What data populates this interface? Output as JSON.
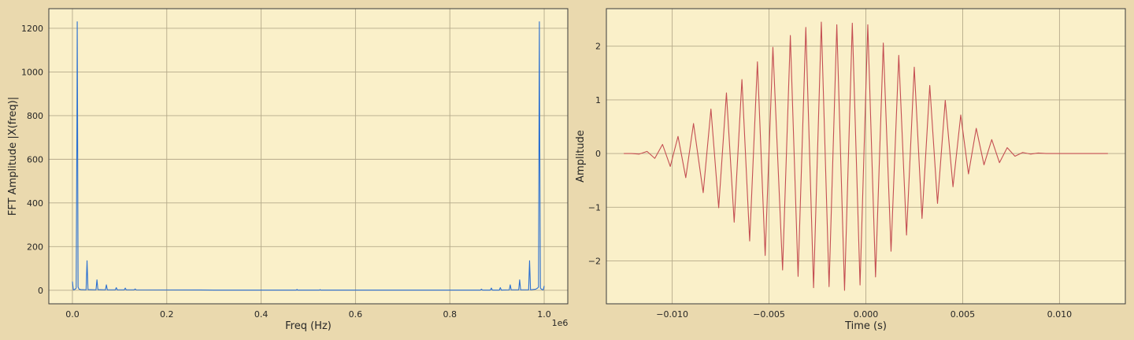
{
  "background_color": "#ead9ae",
  "plot_background_color": "#faf0c9",
  "grid_color": "#b5aa8a",
  "chart_data": [
    {
      "type": "line",
      "xlabel": "Freq (Hz)",
      "ylabel": "FFT Amplitude |X(freq)|",
      "x_offset_label": "1e6",
      "xlim": [
        -0.05,
        1.05
      ],
      "ylim": [
        -62,
        1290
      ],
      "xticks": [
        0.0,
        0.2,
        0.4,
        0.6,
        0.8,
        1.0
      ],
      "xtick_labels": [
        "0.0",
        "0.2",
        "0.4",
        "0.6",
        "0.8",
        "1.0"
      ],
      "yticks": [
        0,
        200,
        400,
        600,
        800,
        1000,
        1200
      ],
      "ytick_labels": [
        "0",
        "200",
        "400",
        "600",
        "800",
        "1000",
        "1200"
      ],
      "grid": true,
      "series": [
        {
          "color": "#2a6fd1",
          "x": [
            0.0,
            0.002,
            0.004,
            0.006,
            0.008,
            0.0098,
            0.0102,
            0.0108,
            0.012,
            0.014,
            0.018,
            0.029,
            0.031,
            0.033,
            0.05,
            0.052,
            0.054,
            0.07,
            0.072,
            0.074,
            0.091,
            0.093,
            0.095,
            0.11,
            0.112,
            0.114,
            0.131,
            0.133,
            0.135,
            0.3,
            0.475,
            0.476,
            0.477,
            0.524,
            0.525,
            0.526,
            0.7,
            0.865,
            0.867,
            0.869,
            0.886,
            0.888,
            0.89,
            0.905,
            0.907,
            0.909,
            0.926,
            0.928,
            0.93,
            0.946,
            0.948,
            0.95,
            0.967,
            0.969,
            0.971,
            0.982,
            0.986,
            0.988,
            0.9892,
            0.9898,
            0.9902,
            0.992,
            0.994,
            0.996,
            0.998,
            1.0
          ],
          "y": [
            40,
            2,
            3,
            5,
            10,
            880,
            1230,
            900,
            15,
            5,
            3,
            2,
            135,
            3,
            2,
            48,
            3,
            2,
            25,
            2,
            2,
            12,
            2,
            2,
            10,
            2,
            2,
            6,
            2,
            1,
            1,
            4,
            1,
            1,
            3,
            1,
            1,
            1,
            5,
            1,
            1,
            10,
            1,
            1,
            12,
            1,
            2,
            25,
            2,
            2,
            48,
            2,
            2,
            135,
            2,
            5,
            10,
            15,
            900,
            1230,
            880,
            10,
            5,
            3,
            2,
            20
          ]
        }
      ]
    },
    {
      "type": "line",
      "xlabel": "Time (s)",
      "ylabel": "Amplitude",
      "xlim": [
        -0.0134,
        0.0134
      ],
      "ylim": [
        -2.8,
        2.7
      ],
      "xticks": [
        -0.01,
        -0.005,
        0.0,
        0.005,
        0.01
      ],
      "xtick_labels": [
        "−0.010",
        "−0.005",
        "0.000",
        "0.005",
        "0.010"
      ],
      "yticks": [
        -2,
        -1,
        0,
        1,
        2
      ],
      "ytick_labels": [
        "−2",
        "−1",
        "0",
        "1",
        "2"
      ],
      "grid": true,
      "series": [
        {
          "color": "#c44e52",
          "x": [
            -0.0125,
            -0.0121,
            -0.0117,
            -0.0113,
            -0.0109,
            -0.0105,
            -0.0101,
            -0.0097,
            -0.0093,
            -0.0089,
            -0.0084,
            -0.008,
            -0.0076,
            -0.0072,
            -0.0068,
            -0.0064,
            -0.006,
            -0.0056,
            -0.0052,
            -0.0048,
            -0.0043,
            -0.0039,
            -0.0035,
            -0.0031,
            -0.0027,
            -0.0023,
            -0.0019,
            -0.0015,
            -0.0011,
            -0.0007,
            -0.0003,
            0.0001,
            0.0005,
            0.0009,
            0.0013,
            0.0017,
            0.0021,
            0.0025,
            0.0029,
            0.0033,
            0.0037,
            0.0041,
            0.0045,
            0.0049,
            0.0053,
            0.0057,
            0.0061,
            0.0065,
            0.0069,
            0.0073,
            0.0077,
            0.0081,
            0.0085,
            0.0089,
            0.0093,
            0.0097,
            0.0101,
            0.0105,
            0.0109,
            0.0113,
            0.0117,
            0.0121,
            0.0125
          ],
          "y": [
            0.0,
            0.0,
            -0.01,
            0.04,
            -0.09,
            0.17,
            -0.24,
            0.32,
            -0.45,
            0.56,
            -0.73,
            0.83,
            -1.01,
            1.13,
            -1.28,
            1.38,
            -1.63,
            1.71,
            -1.9,
            1.98,
            -2.17,
            2.2,
            -2.29,
            2.35,
            -2.5,
            2.45,
            -2.48,
            2.4,
            -2.55,
            2.43,
            -2.45,
            2.4,
            -2.3,
            2.06,
            -1.82,
            1.83,
            -1.52,
            1.61,
            -1.21,
            1.27,
            -0.93,
            0.99,
            -0.62,
            0.72,
            -0.38,
            0.47,
            -0.21,
            0.26,
            -0.17,
            0.11,
            -0.05,
            0.02,
            -0.01,
            0.01,
            0.0,
            0.0,
            0.0,
            0.0,
            0.0,
            0.0,
            0.0,
            0.0,
            0.0
          ]
        }
      ]
    }
  ]
}
